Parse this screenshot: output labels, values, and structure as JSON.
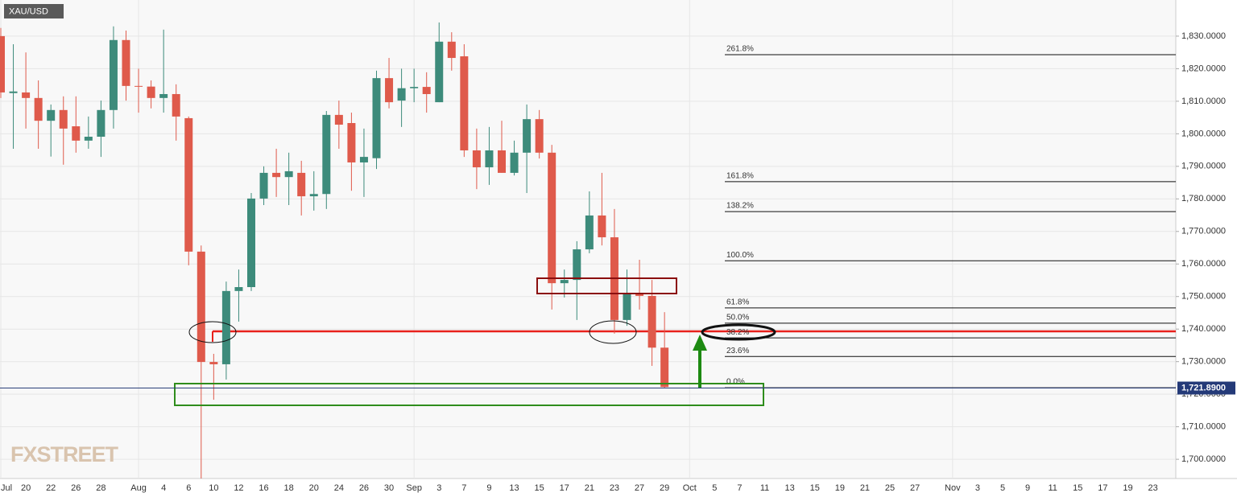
{
  "chart_data": {
    "type": "candlestick",
    "symbol": "XAU/USD",
    "watermark": "FXSTREET",
    "up_color": "#3d8b7b",
    "down_color": "#df5a4b",
    "categories": [
      "Jul",
      null,
      "20",
      null,
      "22",
      null,
      "26",
      null,
      "28",
      null,
      null,
      "Aug",
      null,
      "4",
      null,
      "6",
      null,
      "10",
      null,
      "12",
      null,
      "16",
      null,
      "18",
      null,
      "20",
      null,
      "24",
      null,
      "26",
      null,
      "30",
      null,
      "Sep",
      null,
      "3",
      null,
      "7",
      null,
      "9",
      null,
      "13",
      null,
      "15",
      null,
      "17",
      null,
      "21",
      null,
      "23",
      null,
      "27",
      null,
      "29",
      null,
      "Oct",
      null,
      "5",
      null,
      "7",
      null,
      "11",
      null,
      "13",
      null,
      "15",
      null,
      "19",
      null,
      "21",
      null,
      "25",
      null,
      "27",
      null,
      null,
      "Nov",
      null,
      "3",
      null,
      "5",
      null,
      "9",
      null,
      "11",
      null,
      "15",
      null,
      "17",
      null,
      "19",
      null,
      "23",
      null
    ],
    "open": [
      1830,
      1812.5,
      1812.7,
      1811,
      1804,
      1807.3,
      1802.3,
      1797.9,
      1799.1,
      1807.3,
      1828.8,
      1814.7,
      1814.5,
      1811,
      1812.2,
      1804.8,
      1763.8,
      1729.9,
      1729.2,
      1751.7,
      1752.9,
      1780.1,
      1788,
      1786.7,
      1788,
      1780.8,
      1781.5,
      1805.8,
      1803.3,
      1791.2,
      1792.5,
      1817.1,
      1810.2,
      1814,
      1814.4,
      1809.7,
      1828.3,
      1823.8,
      1794.9,
      1789.7,
      1794.9,
      1788,
      1794.2,
      1804.5,
      1794.2,
      1754.1,
      1755.1,
      1764.5,
      1774.9,
      1768.2,
      1742.8,
      1750.9,
      1750.2,
      1734.3,
      null,
      null,
      null,
      null,
      null,
      null,
      null,
      null,
      null,
      null,
      null,
      null,
      null,
      null,
      null,
      null,
      null,
      null,
      null,
      null,
      null,
      null,
      null,
      null,
      null,
      null,
      null,
      null,
      null,
      null,
      null,
      null,
      null,
      null,
      null,
      null,
      null,
      null,
      null,
      null
    ],
    "high": [
      1832.5,
      1827.5,
      1825,
      1816.4,
      1809,
      1811.5,
      1811.5,
      1805.3,
      1810.2,
      1833,
      1831.7,
      1820,
      1816.4,
      1832,
      1815.2,
      1805.3,
      1765.7,
      1732.4,
      1754.6,
      1758.3,
      1781.8,
      1790,
      1795.4,
      1794.2,
      1791.7,
      1788.5,
      1807,
      1810.2,
      1806.5,
      1801.6,
      1819.4,
      1823.3,
      1820,
      1820,
      1818.9,
      1834.2,
      1831.2,
      1827.5,
      1801.6,
      1802.1,
      1804,
      1797.9,
      1809,
      1807.3,
      1796.6,
      1758.3,
      1767,
      1782.3,
      1788,
      1776.9,
      1758.3,
      1761.3,
      1755.1,
      1745.2,
      null,
      null,
      null,
      null,
      null,
      null,
      null,
      null,
      null,
      null,
      null,
      null,
      null,
      null,
      null,
      null,
      null,
      null,
      null,
      null,
      null,
      null,
      null,
      null,
      null,
      null,
      null,
      null,
      null,
      null,
      null,
      null,
      null,
      null,
      null,
      null,
      null,
      null,
      null,
      null
    ],
    "low": [
      1811,
      1795.4,
      1801.6,
      1795.4,
      1793,
      1790.5,
      1794.2,
      1795.4,
      1792.9,
      1801.6,
      1810.2,
      1806.5,
      1807.8,
      1806.5,
      1797.9,
      1759.6,
      1690,
      1718.3,
      1724.5,
      1742.3,
      1751.7,
      1778.1,
      1780.6,
      1778.1,
      1774.9,
      1776.4,
      1776.9,
      1795.4,
      1782.5,
      1780.6,
      1789.2,
      1807.8,
      1802.1,
      1809.7,
      1806.5,
      1809.7,
      1819.4,
      1792.9,
      1783,
      1784.3,
      1788,
      1787.2,
      1781.8,
      1792.4,
      1746,
      1749.7,
      1742.8,
      1763.3,
      1765.7,
      1738.6,
      1741,
      1746,
      1728.7,
      1721.9,
      null,
      null,
      null,
      null,
      null,
      null,
      null,
      null,
      null,
      null,
      null,
      null,
      null,
      null,
      null,
      null,
      null,
      null,
      null,
      null,
      null,
      null,
      null,
      null,
      null,
      null,
      null,
      null,
      null,
      null,
      null,
      null,
      null,
      null,
      null,
      null,
      null,
      null,
      null,
      null
    ],
    "close": [
      1812.7,
      1813,
      1811,
      1804,
      1807.3,
      1801.6,
      1797.9,
      1799.1,
      1807.3,
      1828.8,
      1814.7,
      1814.5,
      1811,
      1812.2,
      1805.3,
      1763.8,
      1729.9,
      1729.2,
      1751.7,
      1752.9,
      1780.1,
      1788,
      1786.7,
      1788.5,
      1780.8,
      1781.5,
      1805.8,
      1802.8,
      1791.2,
      1792.9,
      1817.1,
      1809.7,
      1814,
      1814.4,
      1812.2,
      1828.3,
      1823.3,
      1794.9,
      1789.7,
      1794.9,
      1788,
      1794.2,
      1804.5,
      1794.2,
      1754.1,
      1755.1,
      1764.5,
      1774.9,
      1768.2,
      1742.8,
      1750.9,
      1750.2,
      1734.3,
      1722.2,
      null,
      null,
      null,
      null,
      null,
      null,
      null,
      null,
      null,
      null,
      null,
      null,
      null,
      null,
      null,
      null,
      null,
      null,
      null,
      null,
      null,
      null,
      null,
      null,
      null,
      null,
      null,
      null,
      null,
      null,
      null,
      null,
      null,
      null,
      null,
      null,
      null,
      null,
      null,
      null
    ],
    "ylim": [
      1694.1,
      1841.1
    ],
    "yticks": [
      {
        "value": 1700,
        "label": "1,700.0000"
      },
      {
        "value": 1710,
        "label": "1,710.0000"
      },
      {
        "value": 1720,
        "label": "1,720.0000"
      },
      {
        "value": 1730,
        "label": "1,730.0000"
      },
      {
        "value": 1740,
        "label": "1,740.0000"
      },
      {
        "value": 1750,
        "label": "1,750.0000"
      },
      {
        "value": 1760,
        "label": "1,760.0000"
      },
      {
        "value": 1770,
        "label": "1,770.0000"
      },
      {
        "value": 1780,
        "label": "1,780.0000"
      },
      {
        "value": 1790,
        "label": "1,790.0000"
      },
      {
        "value": 1800,
        "label": "1,800.0000"
      },
      {
        "value": 1810,
        "label": "1,810.0000"
      },
      {
        "value": 1820,
        "label": "1,820.0000"
      },
      {
        "value": 1830,
        "label": "1,830.0000"
      }
    ],
    "grid": true,
    "last_price": {
      "value": 1721.89,
      "label": "1,721.8900"
    },
    "fib_levels": [
      {
        "label": "261.8%",
        "price": 1824.3
      },
      {
        "label": "161.8%",
        "price": 1785.3
      },
      {
        "label": "138.2%",
        "price": 1776.1
      },
      {
        "label": "100.0%",
        "price": 1761.0
      },
      {
        "label": "61.8%",
        "price": 1746.5
      },
      {
        "label": "50.0%",
        "price": 1741.8
      },
      {
        "label": "38.2%",
        "price": 1737.3
      },
      {
        "label": "23.6%",
        "price": 1731.6
      },
      {
        "label": "0.0%",
        "price": 1722.0
      }
    ]
  }
}
